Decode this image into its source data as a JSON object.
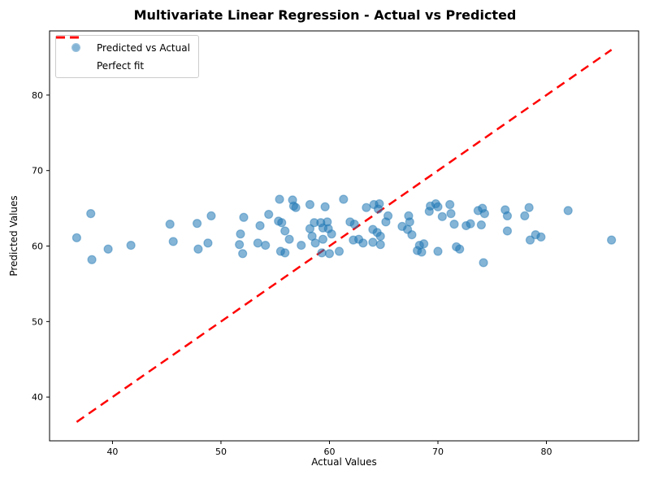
{
  "chart_data": {
    "type": "scatter",
    "title": "Multivariate Linear Regression - Actual vs Predicted",
    "xlabel": "Actual Values",
    "ylabel": "Predicted Values",
    "xlim": [
      34.2,
      88.5
    ],
    "ylim": [
      34.2,
      88.5
    ],
    "xticks": [
      40,
      50,
      60,
      70,
      80
    ],
    "yticks": [
      40,
      50,
      60,
      70,
      80
    ],
    "grid": false,
    "legend": {
      "position": "upper-left",
      "entries": [
        {
          "label": "Predicted vs Actual",
          "type": "marker",
          "color": "#1f77b4"
        },
        {
          "label": "Perfect fit",
          "type": "dashed-line",
          "color": "#ff0000"
        }
      ]
    },
    "colors": {
      "scatter": "#1f77b4",
      "scatter_alpha": 0.55,
      "line": "#ff0000",
      "axis": "#000000"
    },
    "series": [
      {
        "name": "Predicted vs Actual",
        "type": "scatter",
        "points": [
          [
            36.7,
            61.1
          ],
          [
            38.0,
            64.3
          ],
          [
            38.1,
            58.2
          ],
          [
            39.6,
            59.6
          ],
          [
            41.7,
            60.1
          ],
          [
            45.3,
            62.9
          ],
          [
            45.6,
            60.6
          ],
          [
            47.8,
            63.0
          ],
          [
            47.9,
            59.6
          ],
          [
            48.8,
            60.4
          ],
          [
            49.1,
            64.0
          ],
          [
            51.7,
            60.2
          ],
          [
            51.8,
            61.6
          ],
          [
            52.0,
            59.0
          ],
          [
            52.1,
            63.8
          ],
          [
            53.4,
            60.4
          ],
          [
            53.6,
            62.7
          ],
          [
            54.1,
            60.1
          ],
          [
            54.4,
            64.2
          ],
          [
            55.3,
            63.3
          ],
          [
            55.6,
            63.1
          ],
          [
            55.4,
            66.2
          ],
          [
            55.5,
            59.3
          ],
          [
            55.9,
            59.1
          ],
          [
            55.9,
            62.0
          ],
          [
            56.3,
            60.9
          ],
          [
            56.6,
            66.1
          ],
          [
            56.7,
            65.3
          ],
          [
            56.9,
            65.1
          ],
          [
            57.4,
            60.1
          ],
          [
            58.2,
            65.5
          ],
          [
            58.2,
            62.3
          ],
          [
            58.4,
            61.3
          ],
          [
            58.7,
            60.4
          ],
          [
            58.6,
            63.1
          ],
          [
            59.2,
            63.1
          ],
          [
            59.8,
            63.2
          ],
          [
            59.4,
            62.4
          ],
          [
            59.9,
            62.3
          ],
          [
            59.6,
            65.2
          ],
          [
            59.4,
            60.9
          ],
          [
            59.3,
            59.1
          ],
          [
            60.0,
            59.0
          ],
          [
            60.9,
            59.3
          ],
          [
            60.2,
            61.6
          ],
          [
            61.3,
            66.2
          ],
          [
            61.9,
            63.2
          ],
          [
            62.3,
            62.9
          ],
          [
            62.2,
            60.8
          ],
          [
            62.7,
            60.9
          ],
          [
            63.1,
            60.4
          ],
          [
            64.0,
            60.5
          ],
          [
            64.7,
            60.2
          ],
          [
            63.4,
            65.1
          ],
          [
            64.1,
            65.5
          ],
          [
            64.6,
            65.6
          ],
          [
            64.5,
            64.9
          ],
          [
            65.4,
            64.0
          ],
          [
            65.2,
            63.2
          ],
          [
            64.0,
            62.2
          ],
          [
            64.4,
            61.8
          ],
          [
            64.7,
            61.3
          ],
          [
            66.7,
            62.6
          ],
          [
            67.3,
            64.0
          ],
          [
            67.4,
            63.2
          ],
          [
            67.2,
            62.2
          ],
          [
            67.6,
            61.5
          ],
          [
            68.1,
            59.4
          ],
          [
            68.5,
            59.2
          ],
          [
            68.3,
            60.1
          ],
          [
            68.7,
            60.3
          ],
          [
            69.3,
            65.3
          ],
          [
            69.8,
            65.6
          ],
          [
            69.2,
            64.6
          ],
          [
            70.0,
            65.2
          ],
          [
            70.4,
            63.9
          ],
          [
            70.0,
            59.3
          ],
          [
            71.7,
            59.9
          ],
          [
            72.0,
            59.6
          ],
          [
            71.1,
            65.5
          ],
          [
            71.2,
            64.3
          ],
          [
            71.5,
            62.9
          ],
          [
            72.6,
            62.7
          ],
          [
            73.0,
            62.95
          ],
          [
            73.7,
            64.7
          ],
          [
            74.1,
            65.0
          ],
          [
            74.3,
            64.3
          ],
          [
            74.0,
            62.8
          ],
          [
            74.2,
            57.8
          ],
          [
            76.2,
            64.8
          ],
          [
            76.4,
            64.0
          ],
          [
            76.4,
            62.0
          ],
          [
            78.0,
            64.0
          ],
          [
            78.4,
            65.1
          ],
          [
            78.5,
            60.8
          ],
          [
            79.0,
            61.5
          ],
          [
            79.5,
            61.2
          ],
          [
            82.0,
            64.7
          ],
          [
            86.0,
            60.8
          ]
        ]
      },
      {
        "name": "Perfect fit",
        "type": "line",
        "style": "dashed",
        "points": [
          [
            36.7,
            36.7
          ],
          [
            86.0,
            86.0
          ]
        ]
      }
    ]
  }
}
